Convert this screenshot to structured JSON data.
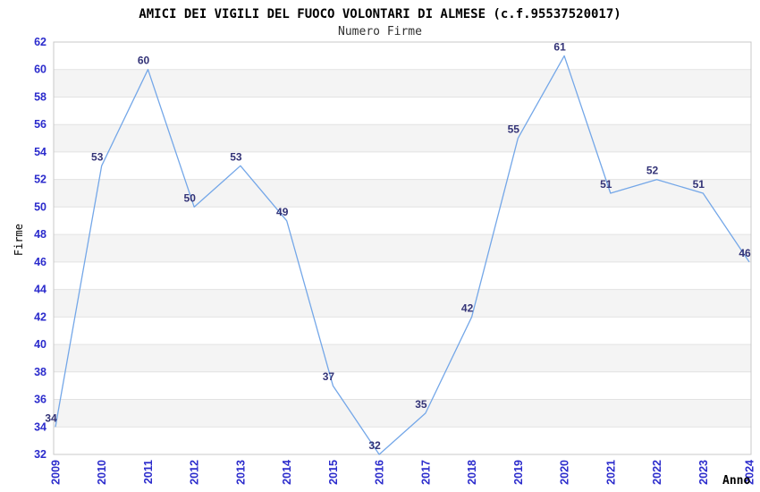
{
  "header": {
    "title": "AMICI DEI VIGILI DEL FUOCO VOLONTARI DI ALMESE (c.f.95537520017)",
    "subtitle": "Numero Firme"
  },
  "chart_data": {
    "type": "line",
    "title": "AMICI DEI VIGILI DEL FUOCO VOLONTARI DI ALMESE (c.f.95537520017)",
    "subtitle": "Numero Firme",
    "xlabel": "Anno",
    "ylabel": "Firme",
    "categories": [
      "2009",
      "2010",
      "2011",
      "2012",
      "2013",
      "2014",
      "2015",
      "2016",
      "2017",
      "2018",
      "2019",
      "2020",
      "2021",
      "2022",
      "2023",
      "2024"
    ],
    "values": [
      34,
      53,
      60,
      50,
      53,
      49,
      37,
      32,
      35,
      42,
      55,
      61,
      51,
      52,
      51,
      46
    ],
    "ylim": [
      32,
      62
    ],
    "ytick_step": 2,
    "grid": true,
    "legend": "none",
    "data_labels": true,
    "colors": {
      "line": "#74a7e8",
      "tick_label": "#2b2bcc",
      "data_label": "#333377",
      "band": "#f4f4f4",
      "gridline": "#e2e2e2",
      "plot_border": "#c8c8c8",
      "title_text": "#000000"
    }
  }
}
